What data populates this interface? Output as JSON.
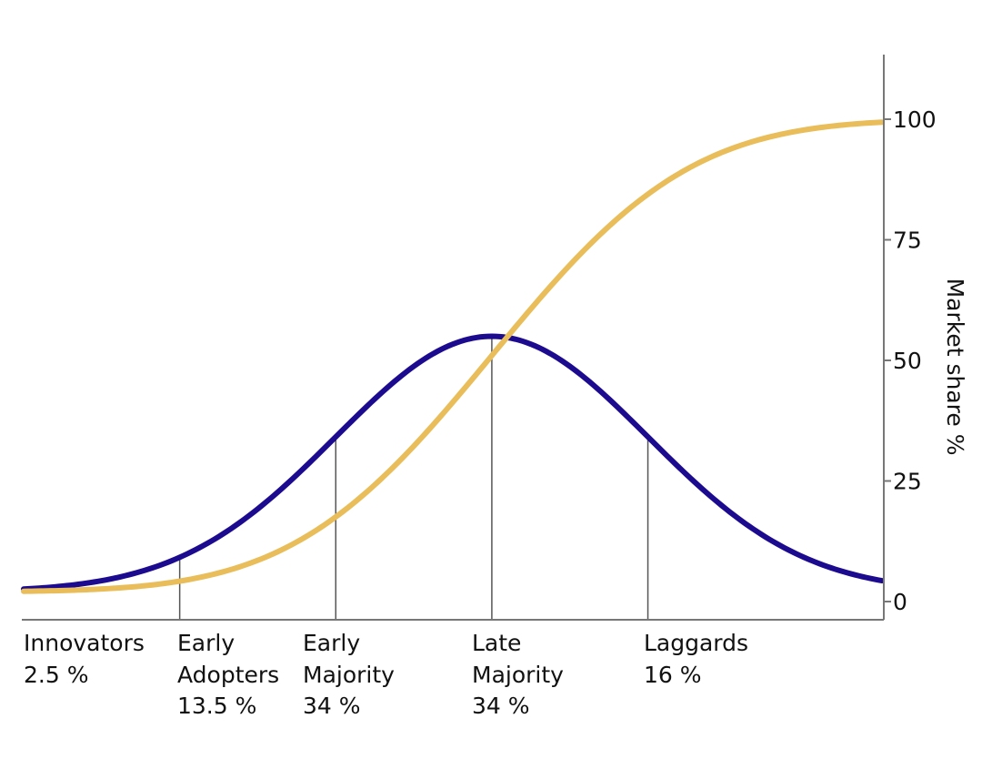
{
  "chart_data": {
    "type": "line",
    "title": "",
    "ylabel": "Market share %",
    "ylim": [
      0,
      110
    ],
    "y_ticks": [
      0,
      25,
      50,
      75,
      100
    ],
    "y_axis_side": "right",
    "grid": false,
    "legend": "none",
    "series": [
      {
        "color": "#1c0b8f",
        "shape": "bell curve (normal distribution)"
      },
      {
        "color": "#e8bd5a",
        "shape": "cumulative S-curve"
      }
    ],
    "curve_points": {
      "x": [
        -3.0,
        -2.0,
        -1.0,
        0.0,
        1.0,
        2.5
      ],
      "bell_curve": [
        2,
        10,
        32,
        55,
        35,
        2
      ],
      "s_curve": [
        2,
        5.5,
        17,
        55,
        87,
        100
      ]
    },
    "segments": [
      {
        "name": "Innovators",
        "value": "2.5 %",
        "lines": [
          "Innovators",
          "2.5 %"
        ]
      },
      {
        "name": "Early Adopters",
        "value": "13.5 %",
        "lines": [
          "Early",
          "Adopters",
          "13.5 %"
        ]
      },
      {
        "name": "Early Majority",
        "value": "34 %",
        "lines": [
          "Early",
          "Majority",
          "34 %"
        ]
      },
      {
        "name": "Late Majority",
        "value": "34 %",
        "lines": [
          "Late",
          "Majority",
          "34 %"
        ]
      },
      {
        "name": "Laggards",
        "value": "16 %",
        "lines": [
          "Laggards",
          "16 %"
        ]
      }
    ],
    "boundaries_sd": [
      -2,
      -1,
      0,
      1
    ]
  }
}
